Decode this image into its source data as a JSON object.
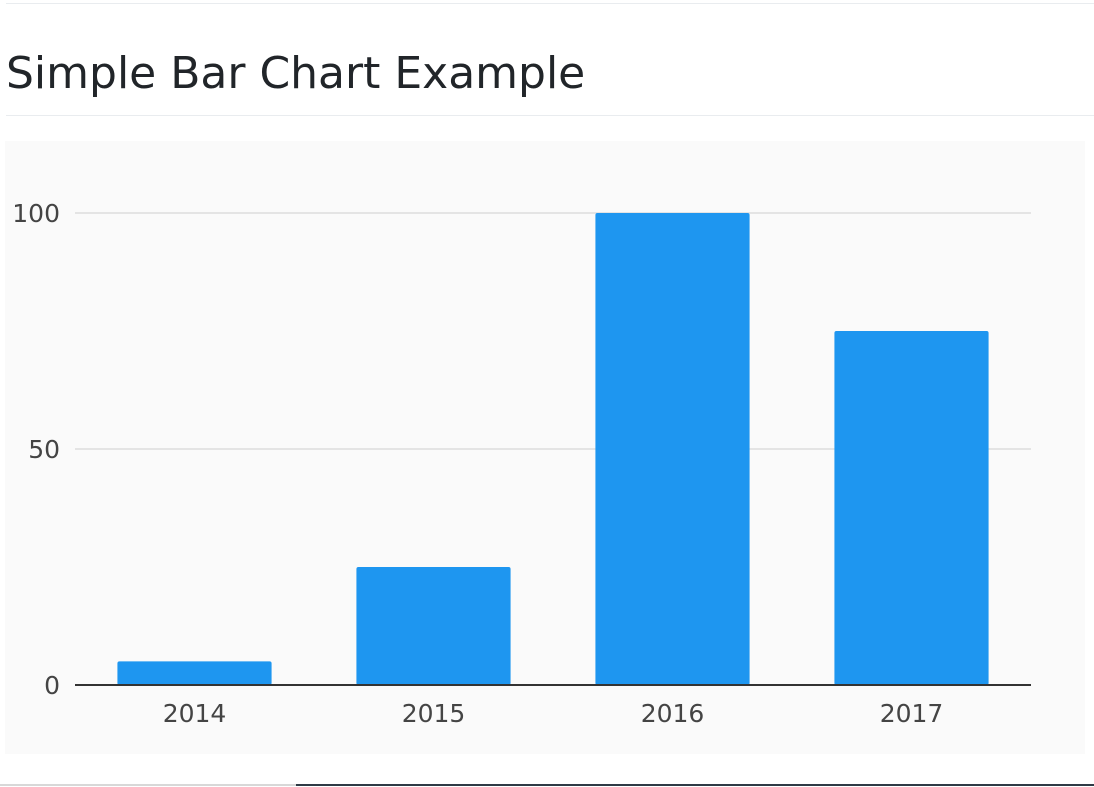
{
  "page": {
    "title": "Simple Bar Chart Example"
  },
  "chart_data": {
    "type": "bar",
    "categories": [
      "2014",
      "2015",
      "2016",
      "2017"
    ],
    "values": [
      5,
      25,
      100,
      75
    ],
    "ylim": [
      0,
      100
    ],
    "yticks": [
      0,
      50,
      100
    ],
    "grid": true,
    "legend": "none",
    "colors": {
      "bar": "#1e96f0",
      "grid": "#e4e4e4",
      "axis": "#333333",
      "tick_label": "#444444",
      "panel": "#fafafa"
    }
  }
}
